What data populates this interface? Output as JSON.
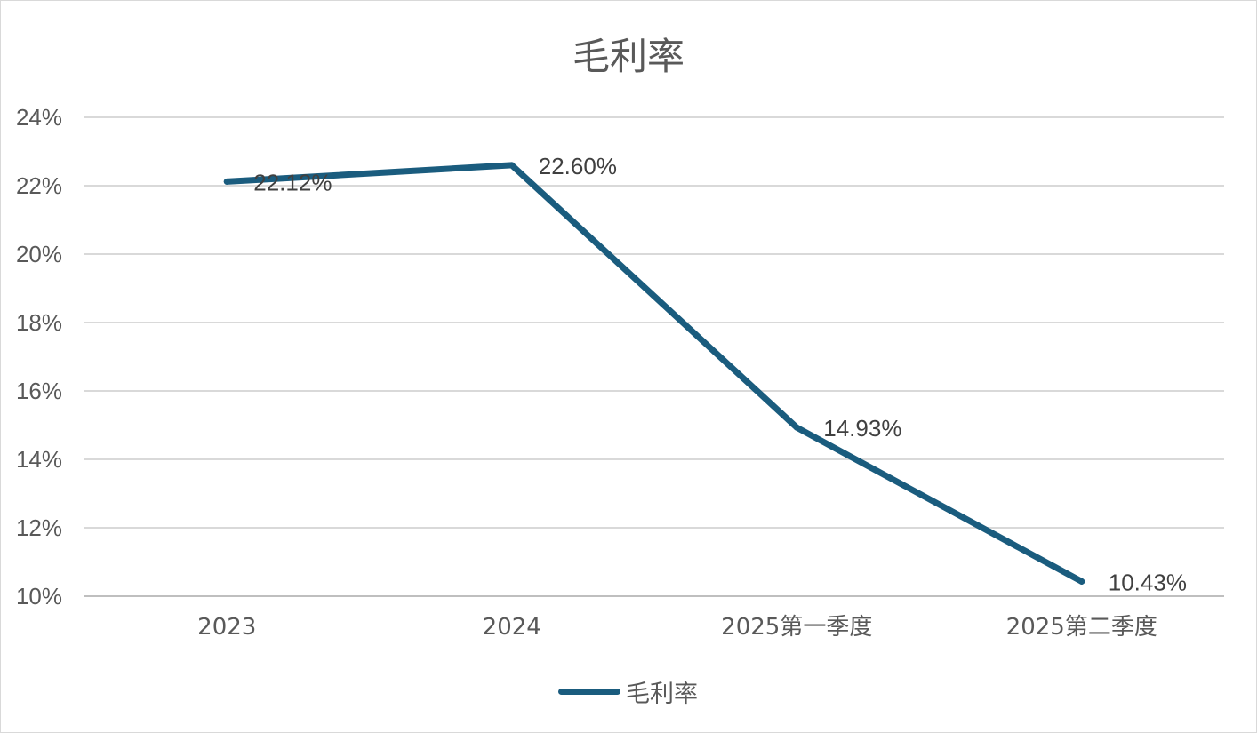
{
  "chart_data": {
    "type": "line",
    "title": "毛利率",
    "categories": [
      "2023",
      "2024",
      "2025第一季度",
      "2025第二季度"
    ],
    "series": [
      {
        "name": "毛利率",
        "values": [
          22.12,
          22.6,
          14.93,
          10.43
        ],
        "labels": [
          "22.12%",
          "22.60%",
          "14.93%",
          "10.43%"
        ],
        "color": "#1a5c7e"
      }
    ],
    "ylim": [
      10,
      24
    ],
    "yticks": [
      "10%",
      "12%",
      "14%",
      "16%",
      "18%",
      "20%",
      "22%",
      "24%"
    ],
    "ytick_values": [
      10,
      12,
      14,
      16,
      18,
      20,
      22,
      24
    ],
    "grid": true,
    "legend": "bottom",
    "gridColor": "#d9d9d9",
    "axisColor": "#bfbfbf"
  }
}
